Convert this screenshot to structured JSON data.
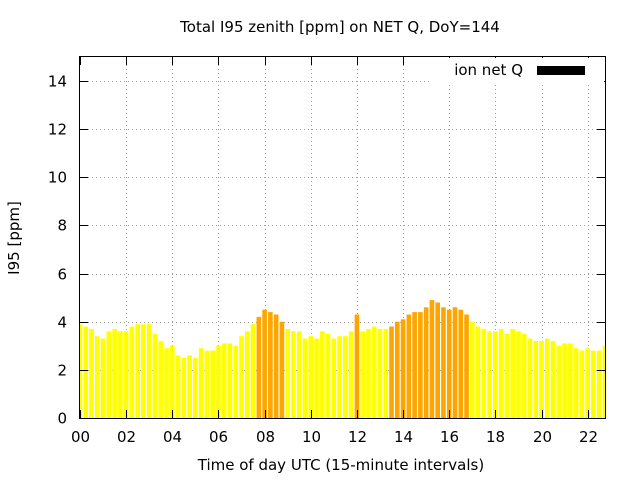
{
  "chart_data": {
    "type": "bar",
    "title": "Total I95 zenith [ppm] on NET Q, DoY=144",
    "xlabel": "Time of day UTC (15-minute intervals)",
    "ylabel": "I95 [ppm]",
    "xlim": [
      0,
      22.75
    ],
    "ylim": [
      0,
      15
    ],
    "x_ticks": [
      "00",
      "02",
      "04",
      "06",
      "08",
      "10",
      "12",
      "14",
      "16",
      "18",
      "20",
      "22"
    ],
    "y_ticks": [
      "0",
      "2",
      "4",
      "6",
      "8",
      "10",
      "12",
      "14"
    ],
    "grid": true,
    "legend_position": "top-right",
    "bar_width_hours": 0.2,
    "series": [
      {
        "name": "ion net Q",
        "legend_color": "#000000",
        "values": [
          3.9,
          3.8,
          3.7,
          3.4,
          3.3,
          3.6,
          3.7,
          3.6,
          3.6,
          3.8,
          3.9,
          3.9,
          3.9,
          3.5,
          3.2,
          2.9,
          3.0,
          2.6,
          2.5,
          2.6,
          2.5,
          2.9,
          2.8,
          2.8,
          3.0,
          3.1,
          3.1,
          3.0,
          3.4,
          3.6,
          3.9,
          4.2,
          4.5,
          4.4,
          4.3,
          4.0,
          3.7,
          3.6,
          3.6,
          3.3,
          3.4,
          3.3,
          3.6,
          3.5,
          3.3,
          3.4,
          3.4,
          3.6,
          4.3,
          3.6,
          3.7,
          3.8,
          3.7,
          3.7,
          3.8,
          4.0,
          4.1,
          4.3,
          4.4,
          4.4,
          4.6,
          4.9,
          4.8,
          4.6,
          4.5,
          4.6,
          4.5,
          4.3,
          4.0,
          3.8,
          3.7,
          3.6,
          3.6,
          3.7,
          3.5,
          3.7,
          3.6,
          3.5,
          3.3,
          3.2,
          3.2,
          3.3,
          3.2,
          3.0,
          3.1,
          3.1,
          2.9,
          2.8,
          2.9,
          2.8,
          2.8,
          3.0
        ],
        "flagged": [
          false,
          false,
          false,
          false,
          false,
          false,
          false,
          false,
          false,
          false,
          false,
          false,
          false,
          false,
          false,
          false,
          false,
          false,
          false,
          false,
          false,
          false,
          false,
          false,
          false,
          false,
          false,
          false,
          false,
          false,
          false,
          true,
          true,
          true,
          true,
          true,
          false,
          false,
          false,
          false,
          false,
          false,
          false,
          false,
          false,
          false,
          false,
          false,
          true,
          false,
          false,
          false,
          false,
          false,
          true,
          true,
          true,
          true,
          true,
          true,
          true,
          true,
          true,
          true,
          true,
          true,
          true,
          true,
          false,
          false,
          false,
          false,
          false,
          false,
          false,
          false,
          false,
          false,
          false,
          false,
          false,
          false,
          false,
          false,
          false,
          false,
          false,
          false,
          false,
          false,
          false,
          false
        ],
        "colors": {
          "normal": "#ffff00",
          "flagged": "#ffa500"
        }
      }
    ]
  }
}
